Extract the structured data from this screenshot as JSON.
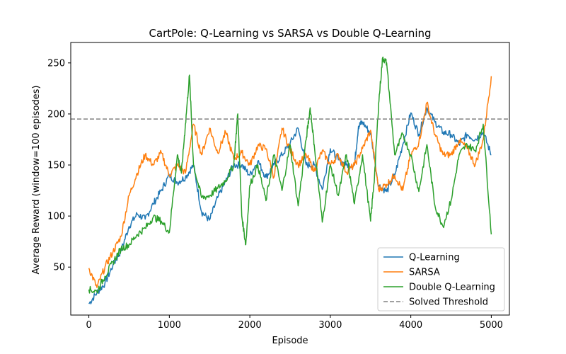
{
  "chart_data": {
    "type": "line",
    "title": "CartPole: Q-Learning vs SARSA vs Double Q-Learning",
    "xlabel": "Episode",
    "ylabel": "Average Reward (window=100 episodes)",
    "xlim": [
      -225,
      5225
    ],
    "ylim": [
      3,
      270
    ],
    "xticks": [
      0,
      1000,
      2000,
      3000,
      4000,
      5000
    ],
    "yticks": [
      50,
      100,
      150,
      200,
      250
    ],
    "grid": false,
    "legend_position": "lower-right",
    "threshold": {
      "name": "Solved Threshold",
      "y": 195,
      "color": "#808080",
      "style": "dashed"
    },
    "series": [
      {
        "name": "Q-Learning",
        "color": "#1f77b4",
        "points": [
          [
            0,
            14
          ],
          [
            100,
            25
          ],
          [
            200,
            34
          ],
          [
            300,
            52
          ],
          [
            400,
            66
          ],
          [
            500,
            90
          ],
          [
            600,
            102
          ],
          [
            700,
            97
          ],
          [
            800,
            112
          ],
          [
            900,
            125
          ],
          [
            1000,
            140
          ],
          [
            1100,
            133
          ],
          [
            1200,
            138
          ],
          [
            1300,
            150
          ],
          [
            1400,
            104
          ],
          [
            1500,
            96
          ],
          [
            1600,
            118
          ],
          [
            1700,
            134
          ],
          [
            1800,
            150
          ],
          [
            1900,
            150
          ],
          [
            2000,
            140
          ],
          [
            2100,
            154
          ],
          [
            2200,
            138
          ],
          [
            2300,
            150
          ],
          [
            2400,
            160
          ],
          [
            2500,
            171
          ],
          [
            2600,
            186
          ],
          [
            2700,
            150
          ],
          [
            2800,
            150
          ],
          [
            2900,
            126
          ],
          [
            3000,
            166
          ],
          [
            3100,
            155
          ],
          [
            3200,
            150
          ],
          [
            3300,
            150
          ],
          [
            3350,
            188
          ],
          [
            3400,
            192
          ],
          [
            3500,
            181
          ],
          [
            3600,
            130
          ],
          [
            3700,
            124
          ],
          [
            3800,
            140
          ],
          [
            3900,
            170
          ],
          [
            4000,
            201
          ],
          [
            4100,
            180
          ],
          [
            4200,
            206
          ],
          [
            4300,
            192
          ],
          [
            4400,
            182
          ],
          [
            4500,
            180
          ],
          [
            4600,
            170
          ],
          [
            4700,
            180
          ],
          [
            4800,
            175
          ],
          [
            4900,
            182
          ],
          [
            5000,
            160
          ]
        ]
      },
      {
        "name": "SARSA",
        "color": "#ff7f0e",
        "points": [
          [
            0,
            49
          ],
          [
            100,
            30
          ],
          [
            200,
            50
          ],
          [
            300,
            65
          ],
          [
            400,
            80
          ],
          [
            500,
            120
          ],
          [
            600,
            142
          ],
          [
            700,
            160
          ],
          [
            800,
            150
          ],
          [
            900,
            162
          ],
          [
            1000,
            140
          ],
          [
            1100,
            150
          ],
          [
            1200,
            142
          ],
          [
            1300,
            190
          ],
          [
            1400,
            160
          ],
          [
            1500,
            186
          ],
          [
            1600,
            162
          ],
          [
            1700,
            182
          ],
          [
            1800,
            156
          ],
          [
            1900,
            162
          ],
          [
            2000,
            150
          ],
          [
            2100,
            169
          ],
          [
            2200,
            166
          ],
          [
            2300,
            138
          ],
          [
            2400,
            186
          ],
          [
            2500,
            165
          ],
          [
            2600,
            150
          ],
          [
            2700,
            160
          ],
          [
            2800,
            144
          ],
          [
            2900,
            164
          ],
          [
            3000,
            150
          ],
          [
            3100,
            160
          ],
          [
            3200,
            143
          ],
          [
            3300,
            150
          ],
          [
            3400,
            166
          ],
          [
            3500,
            184
          ],
          [
            3600,
            126
          ],
          [
            3700,
            131
          ],
          [
            3800,
            140
          ],
          [
            3900,
            125
          ],
          [
            4000,
            160
          ],
          [
            4100,
            172
          ],
          [
            4200,
            211
          ],
          [
            4300,
            180
          ],
          [
            4400,
            160
          ],
          [
            4500,
            160
          ],
          [
            4600,
            174
          ],
          [
            4700,
            166
          ],
          [
            4800,
            150
          ],
          [
            4900,
            175
          ],
          [
            5000,
            237
          ]
        ]
      },
      {
        "name": "Double Q-Learning",
        "color": "#2ca02c",
        "points": [
          [
            0,
            28
          ],
          [
            100,
            26
          ],
          [
            200,
            41
          ],
          [
            300,
            55
          ],
          [
            400,
            68
          ],
          [
            500,
            72
          ],
          [
            600,
            82
          ],
          [
            700,
            88
          ],
          [
            800,
            99
          ],
          [
            900,
            95
          ],
          [
            1000,
            84
          ],
          [
            1100,
            160
          ],
          [
            1150,
            142
          ],
          [
            1200,
            190
          ],
          [
            1250,
            238
          ],
          [
            1300,
            150
          ],
          [
            1400,
            118
          ],
          [
            1500,
            120
          ],
          [
            1600,
            127
          ],
          [
            1700,
            135
          ],
          [
            1800,
            150
          ],
          [
            1850,
            200
          ],
          [
            1900,
            100
          ],
          [
            1950,
            72
          ],
          [
            2000,
            130
          ],
          [
            2100,
            150
          ],
          [
            2200,
            115
          ],
          [
            2300,
            160
          ],
          [
            2400,
            125
          ],
          [
            2500,
            170
          ],
          [
            2600,
            110
          ],
          [
            2700,
            175
          ],
          [
            2750,
            206
          ],
          [
            2800,
            170
          ],
          [
            2900,
            94
          ],
          [
            3000,
            150
          ],
          [
            3100,
            120
          ],
          [
            3200,
            160
          ],
          [
            3300,
            112
          ],
          [
            3400,
            160
          ],
          [
            3500,
            95
          ],
          [
            3550,
            140
          ],
          [
            3600,
            210
          ],
          [
            3650,
            255
          ],
          [
            3700,
            250
          ],
          [
            3800,
            160
          ],
          [
            3900,
            180
          ],
          [
            4000,
            160
          ],
          [
            4100,
            124
          ],
          [
            4200,
            170
          ],
          [
            4300,
            110
          ],
          [
            4400,
            90
          ],
          [
            4500,
            115
          ],
          [
            4600,
            160
          ],
          [
            4700,
            170
          ],
          [
            4800,
            164
          ],
          [
            4900,
            190
          ],
          [
            5000,
            82
          ]
        ]
      }
    ]
  }
}
